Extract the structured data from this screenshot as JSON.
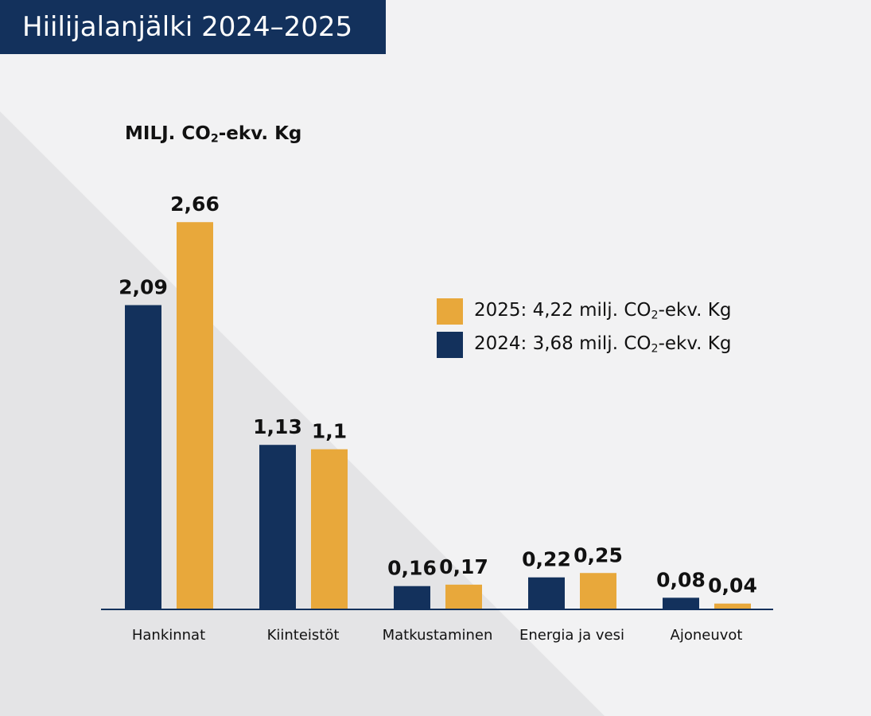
{
  "header": {
    "title": "Hiilijalanjälki 2024–2025"
  },
  "chart_data": {
    "type": "bar",
    "ylabel": "MILJ. CO₂-ekv. Kg",
    "categories": [
      "Hankinnat",
      "Kiinteistöt",
      "Matkustaminen",
      "Energia ja vesi",
      "Ajoneuvot"
    ],
    "series": [
      {
        "name": "2024: 3,68 milj. CO₂-ekv. Kg",
        "color": "#13315c",
        "values": [
          2.09,
          1.13,
          0.16,
          0.22,
          0.08
        ],
        "labels": [
          "2,09",
          "1,13",
          "0,16",
          "0,22",
          "0,08"
        ]
      },
      {
        "name": "2025: 4,22 milj. CO₂-ekv. Kg",
        "color": "#e8a83b",
        "values": [
          2.66,
          1.1,
          0.17,
          0.25,
          0.04
        ],
        "labels": [
          "2,66",
          "1,1",
          "0,17",
          "0,25",
          "0,04"
        ]
      }
    ],
    "ylim": [
      0,
      3.5
    ],
    "grid": false,
    "legend": "right"
  }
}
